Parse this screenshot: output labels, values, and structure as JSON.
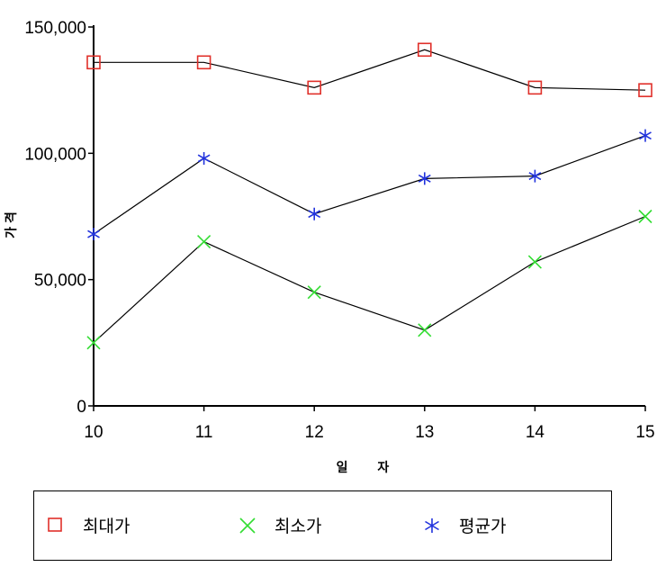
{
  "chart_data": {
    "type": "line",
    "categories": [
      "10",
      "11",
      "12",
      "13",
      "14",
      "15"
    ],
    "series": [
      {
        "name": "최대가",
        "marker": "square",
        "color": "#e0302a",
        "values": [
          136000,
          136000,
          126000,
          141000,
          126000,
          125000
        ]
      },
      {
        "name": "최소가",
        "marker": "x",
        "color": "#33dd33",
        "values": [
          25000,
          65000,
          45000,
          30000,
          57000,
          75000
        ]
      },
      {
        "name": "평균가",
        "marker": "asterisk",
        "color": "#2233dd",
        "values": [
          68000,
          98000,
          76000,
          90000,
          91000,
          107000
        ]
      }
    ],
    "xlabel": "일 자",
    "ylabel": "가격",
    "ylim": [
      0,
      150000
    ],
    "yticks": [
      "0",
      "50,000",
      "100,000",
      "150,000"
    ],
    "grid": false,
    "legend_position": "bottom"
  }
}
